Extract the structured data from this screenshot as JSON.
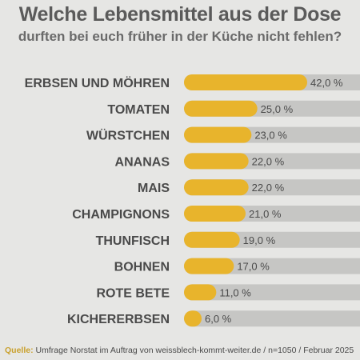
{
  "chart_data": {
    "type": "bar",
    "orientation": "horizontal",
    "title": "Welche Lebensmittel aus der Dose",
    "subtitle": "durften bei euch früher in der Küche nicht fehlen?",
    "categories": [
      "ERBSEN UND MÖHREN",
      "TOMATEN",
      "WÜRSTCHEN",
      "ANANAS",
      "MAIS",
      "CHAMPIGNONS",
      "THUNFISCH",
      "BOHNEN",
      "ROTE BETE",
      "KICHERERBSEN"
    ],
    "values": [
      42.0,
      25.0,
      23.0,
      22.0,
      22.0,
      21.0,
      19.0,
      17.0,
      11.0,
      6.0
    ],
    "value_labels": [
      "42,0 %",
      "25,0 %",
      "23,0 %",
      "22,0 %",
      "22,0 %",
      "21,0 %",
      "19,0 %",
      "17,0 %",
      "11,0 %",
      "6,0 %"
    ],
    "xlim": [
      0,
      60
    ],
    "grid": false,
    "colors": {
      "bar": "#e8b42c",
      "track": "#c6c6c4",
      "label": "#4a4a4a",
      "background": "#e6e6e4"
    }
  },
  "source": {
    "label": "Quelle:",
    "text": "Umfrage Norstat im Auftrag von weissblech-kommt-weiter.de / n=1050 / Februar 2025"
  }
}
